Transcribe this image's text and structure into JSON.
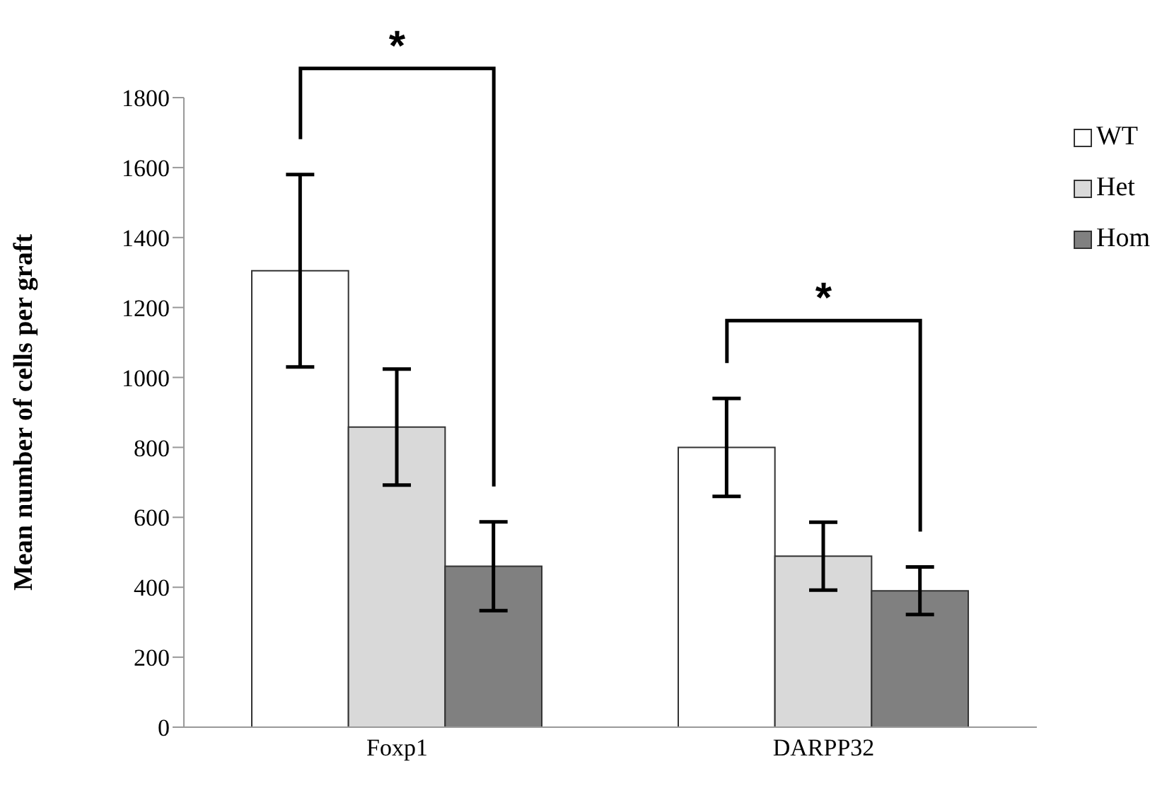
{
  "chart_data": {
    "type": "bar",
    "ylabel": "Mean number of cells per graft",
    "categories": [
      "Foxp1",
      "DARPP32"
    ],
    "series": [
      {
        "name": "WT",
        "color": "#ffffff",
        "values": [
          1305,
          800
        ],
        "errors": [
          275,
          140
        ]
      },
      {
        "name": "Het",
        "color": "#d9d9d9",
        "values": [
          858,
          489
        ],
        "errors": [
          166,
          97
        ]
      },
      {
        "name": "Hom",
        "color": "#808080",
        "values": [
          460,
          390
        ],
        "errors": [
          127,
          68
        ]
      }
    ],
    "ylim": [
      0,
      1800
    ],
    "yticks": [
      0,
      200,
      400,
      600,
      800,
      1000,
      1200,
      1400,
      1600,
      1800
    ],
    "grid": false,
    "legend": "right",
    "annotations": [
      "*",
      "*"
    ]
  }
}
